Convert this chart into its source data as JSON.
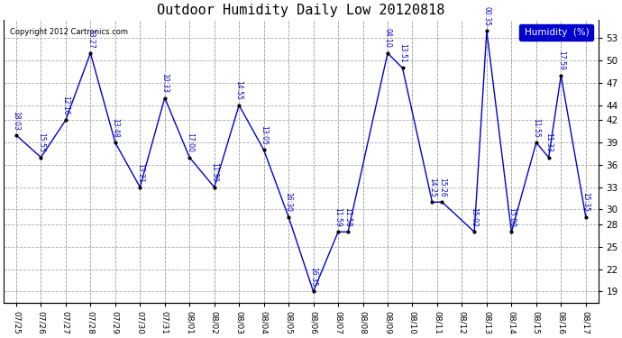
{
  "title": "Outdoor Humidity Daily Low 20120818",
  "copyright": "Copyright 2012 Cartronics.com",
  "legend_label": "Humidity  (%)",
  "y_ticks": [
    19,
    22,
    25,
    28,
    30,
    33,
    36,
    39,
    42,
    44,
    47,
    50,
    53
  ],
  "ylim": [
    17.5,
    55.5
  ],
  "line_color": "#0000CC",
  "bg_color": "#ffffff",
  "x_labels": [
    "07/25",
    "07/26",
    "07/27",
    "07/28",
    "07/29",
    "07/30",
    "07/31",
    "08/01",
    "08/02",
    "08/03",
    "08/04",
    "08/05",
    "08/06",
    "08/07",
    "08/08",
    "08/09",
    "08/10",
    "08/11",
    "08/12",
    "08/13",
    "08/14",
    "08/15",
    "08/16",
    "08/17"
  ],
  "point_data": [
    [
      0,
      40,
      "18:03"
    ],
    [
      1,
      37,
      "15:55"
    ],
    [
      2,
      42,
      "12:16"
    ],
    [
      3,
      51,
      "13:27"
    ],
    [
      4,
      39,
      "13:48"
    ],
    [
      5,
      33,
      "13:21"
    ],
    [
      6,
      45,
      "10:33"
    ],
    [
      7,
      37,
      "17:00"
    ],
    [
      8,
      33,
      "11:30"
    ],
    [
      9,
      44,
      "14:55"
    ],
    [
      10,
      38,
      "13:05"
    ],
    [
      11,
      29,
      "16:30"
    ],
    [
      12,
      19,
      "16:35"
    ],
    [
      13,
      27,
      "11:59"
    ],
    [
      13.4,
      27,
      "11:58"
    ],
    [
      15,
      51,
      "04:10"
    ],
    [
      15.6,
      49,
      "13:51"
    ],
    [
      16.8,
      31,
      "14:25"
    ],
    [
      17.2,
      31,
      "15:26"
    ],
    [
      18.5,
      27,
      "15:02"
    ],
    [
      19,
      54,
      "00:35"
    ],
    [
      20,
      27,
      "15:00"
    ],
    [
      21,
      39,
      "11:55"
    ],
    [
      21.5,
      37,
      "11:33"
    ],
    [
      22,
      48,
      "17:59"
    ],
    [
      23,
      29,
      "15:35"
    ]
  ]
}
